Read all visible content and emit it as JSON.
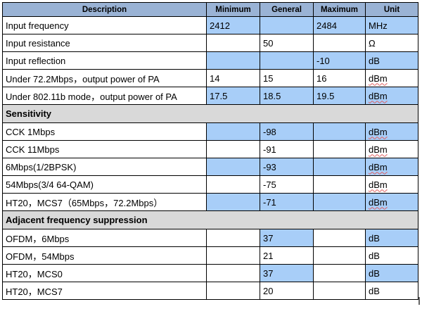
{
  "header": {
    "description": "Description",
    "minimum": "Minimum",
    "general": "General",
    "maximum": "Maximum",
    "unit": "Unit"
  },
  "colors": {
    "header_bg": "#9ab3d5",
    "highlight_bg": "#a8cef8",
    "section_bg": "#d9d9d9"
  },
  "rows_top": [
    {
      "description": "Input frequency",
      "minimum": "2412",
      "general": "",
      "maximum": "2484",
      "unit": "MHz"
    },
    {
      "description": "Input resistance",
      "minimum": "",
      "general": "50",
      "maximum": "",
      "unit": "Ω"
    },
    {
      "description": "Input reflection",
      "minimum": "",
      "general": "",
      "maximum": "-10",
      "unit": "dB"
    },
    {
      "description": "Under 72.2Mbps，output power of PA",
      "minimum": "14",
      "general": "15",
      "maximum": "16",
      "unit": "dBm"
    },
    {
      "description": "Under 802.11b mode，output power of PA",
      "minimum": "17.5",
      "general": "18.5",
      "maximum": "19.5",
      "unit": "dBm"
    }
  ],
  "section_sensitivity": "Sensitivity",
  "rows_sensitivity": [
    {
      "description": "CCK 1Mbps",
      "minimum": "",
      "general": "-98",
      "maximum": "",
      "unit": "dBm"
    },
    {
      "description": "CCK 11Mbps",
      "minimum": "",
      "general": "-91",
      "maximum": "",
      "unit": "dBm"
    },
    {
      "description": "6Mbps(1/2BPSK)",
      "minimum": "",
      "general": "-93",
      "maximum": "",
      "unit": "dBm"
    },
    {
      "description": "54Mbps(3/4 64-QAM)",
      "minimum": "",
      "general": "-75",
      "maximum": "",
      "unit": "dBm"
    },
    {
      "description": "HT20，MCS7（65Mbps，72.2Mbps）",
      "minimum": "",
      "general": "-71",
      "maximum": "",
      "unit": "dBm"
    }
  ],
  "section_adjacent": "Adjacent frequency suppression",
  "rows_adjacent": [
    {
      "description": "OFDM，6Mbps",
      "minimum": "",
      "general": "37",
      "maximum": "",
      "unit": "dB"
    },
    {
      "description": "OFDM，54Mbps",
      "minimum": "",
      "general": "21",
      "maximum": "",
      "unit": "dB"
    },
    {
      "description": "HT20，MCS0",
      "minimum": "",
      "general": "37",
      "maximum": "",
      "unit": "dB"
    },
    {
      "description": "HT20，MCS7",
      "minimum": "",
      "general": "20",
      "maximum": "",
      "unit": "dB"
    }
  ]
}
